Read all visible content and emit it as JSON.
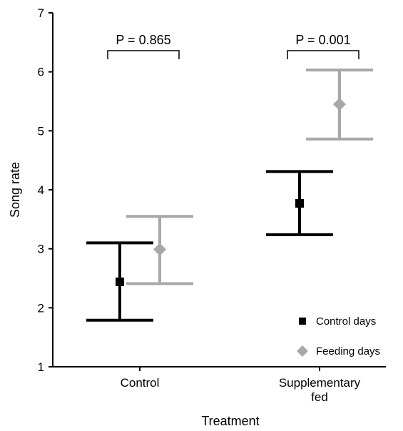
{
  "chart_data": {
    "type": "scatter",
    "title": "",
    "xlabel": "Treatment",
    "ylabel": "Song rate",
    "ylim": [
      1,
      7
    ],
    "yticks": [
      "1",
      "2",
      "3",
      "4",
      "5",
      "6",
      "7"
    ],
    "categories": [
      {
        "lines": [
          "Control"
        ]
      },
      {
        "lines": [
          "Supplementary",
          "fed"
        ]
      }
    ],
    "series": [
      {
        "name": "Control days",
        "color": "#000000",
        "marker": "square",
        "points": [
          {
            "mean": 2.44,
            "lower": 1.79,
            "upper": 3.1
          },
          {
            "mean": 3.77,
            "lower": 3.24,
            "upper": 4.31
          }
        ]
      },
      {
        "name": "Feeding days",
        "color": "#a8a8a8",
        "marker": "diamond",
        "points": [
          {
            "mean": 2.99,
            "lower": 2.41,
            "upper": 3.55
          },
          {
            "mean": 5.45,
            "lower": 4.86,
            "upper": 6.03
          }
        ]
      }
    ],
    "annotations": [
      {
        "text": "P = 0.865",
        "category": 0
      },
      {
        "text": "P = 0.001",
        "category": 1
      }
    ],
    "legend": {
      "position": "bottom-right"
    },
    "grid": false
  }
}
